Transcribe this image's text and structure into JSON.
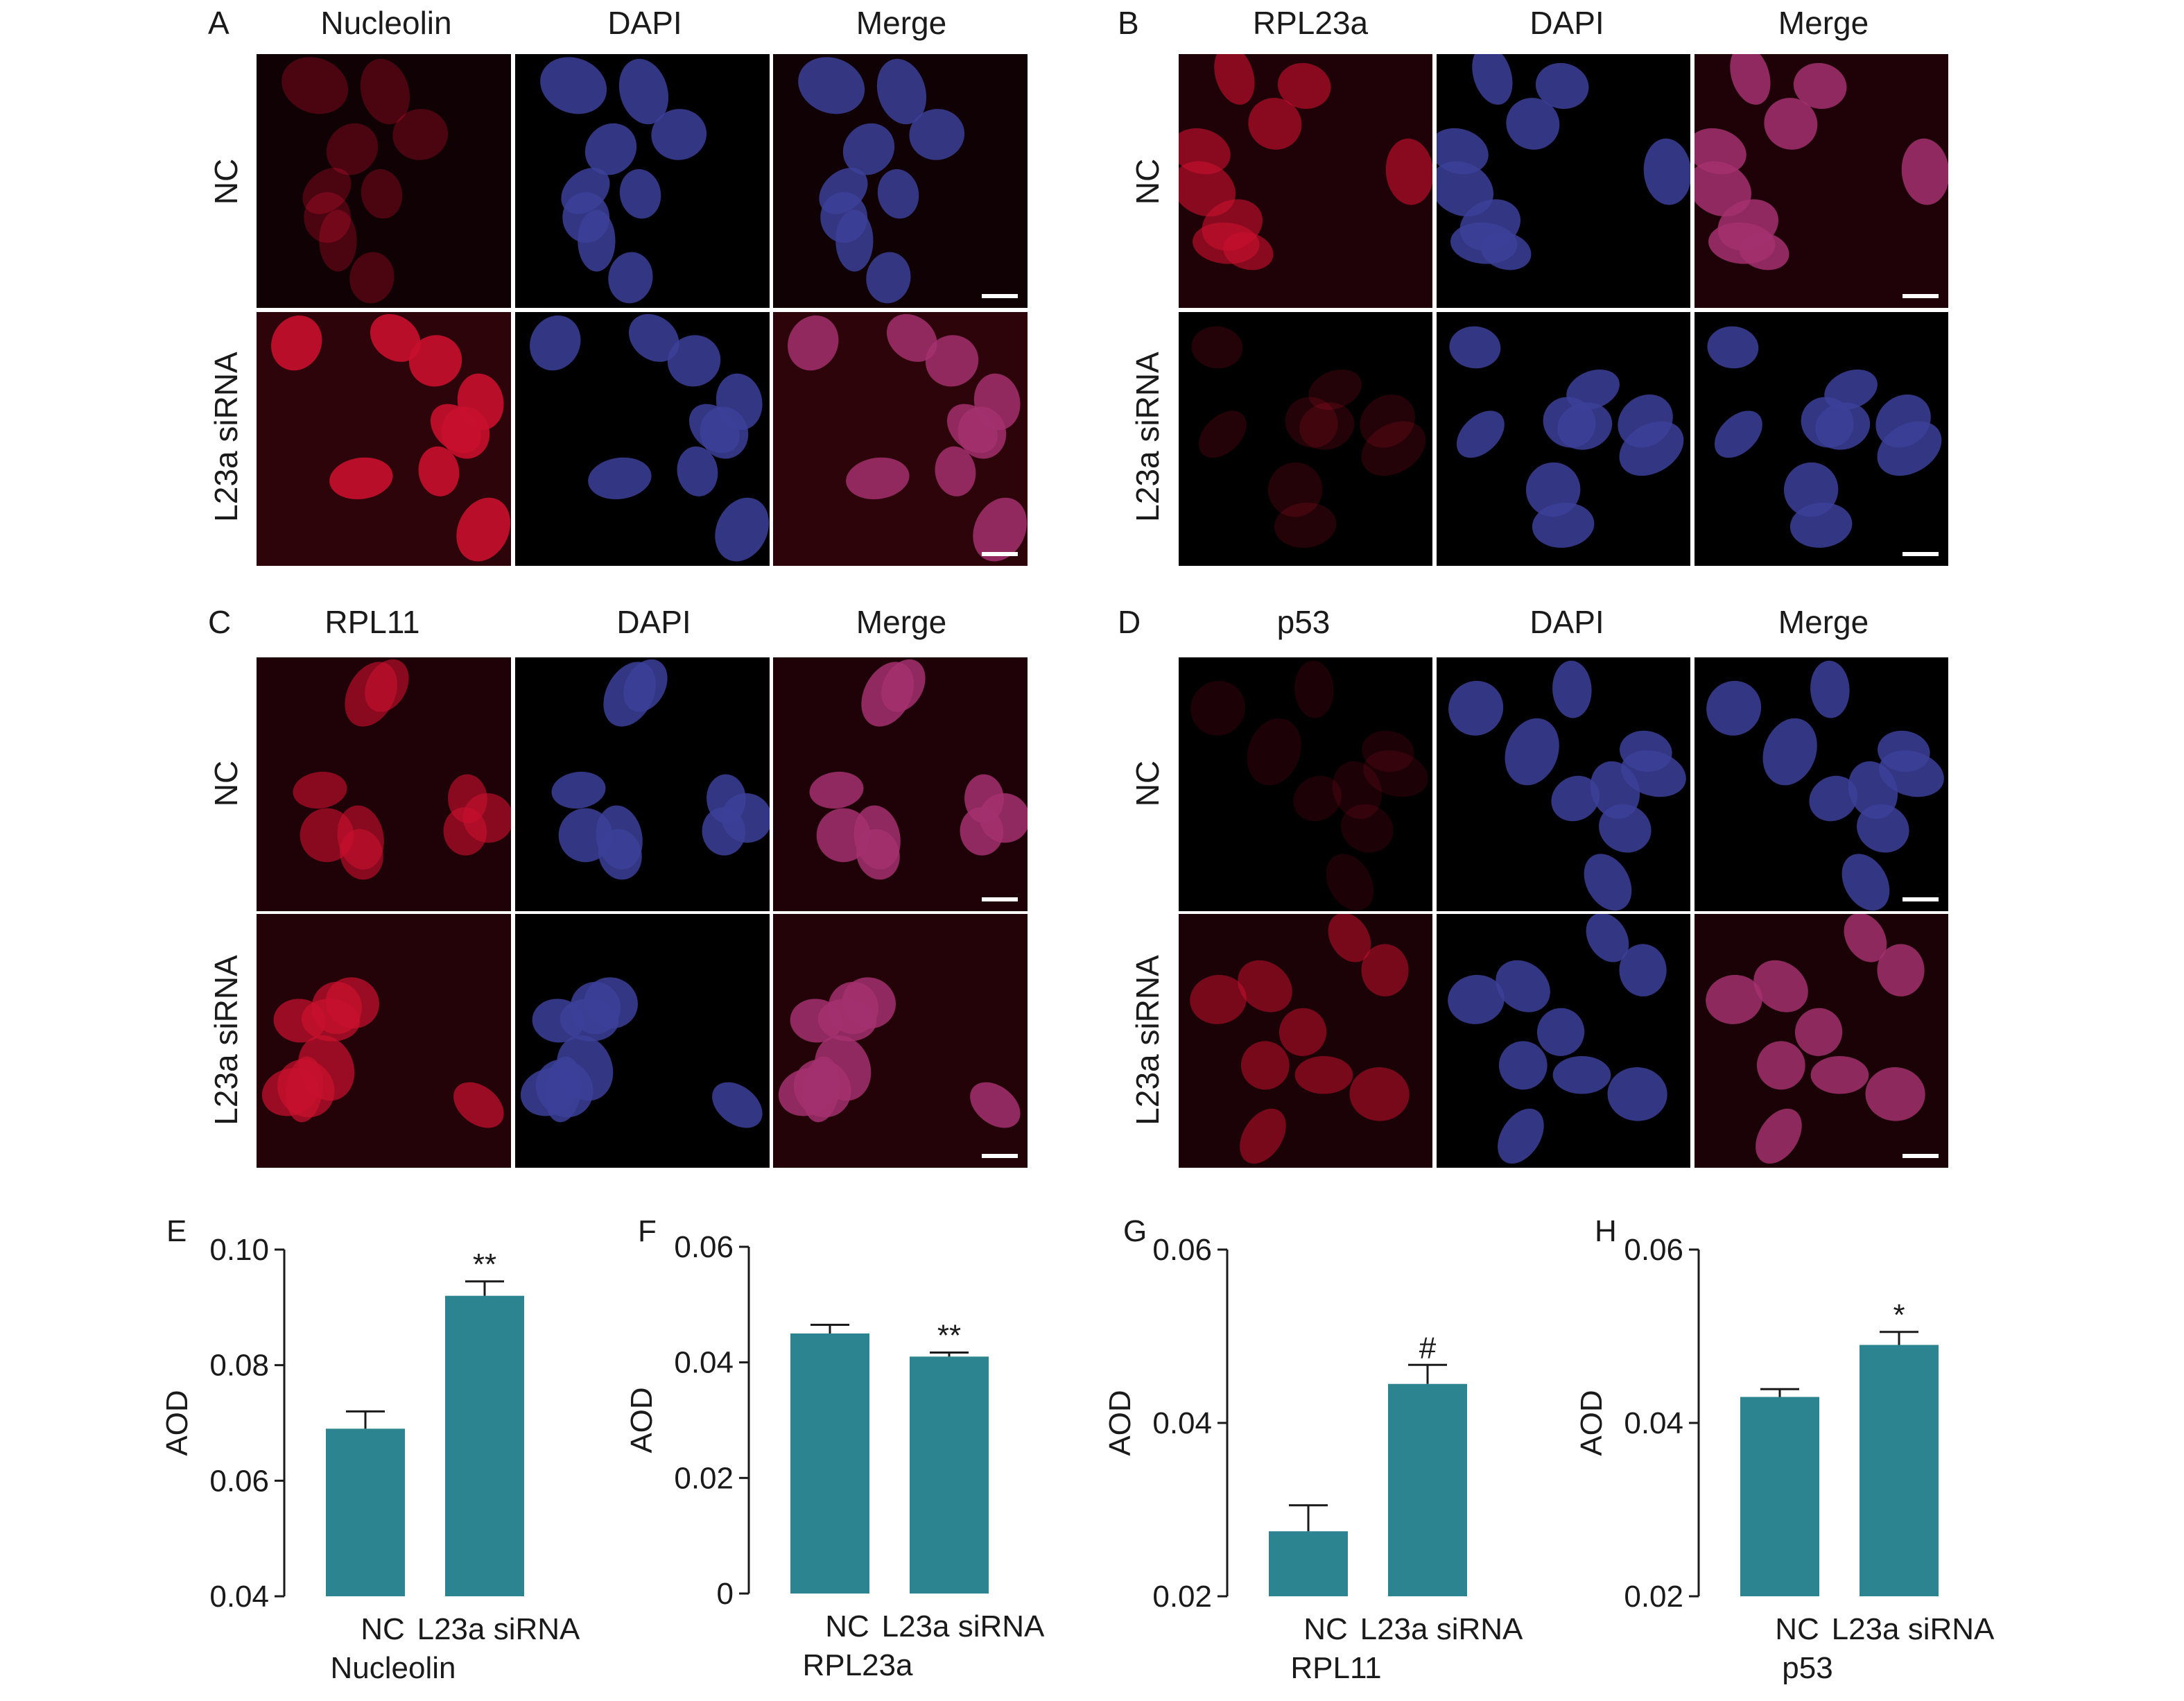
{
  "panels": {
    "A": {
      "letter": "A",
      "columns": [
        "Nucleolin",
        "DAPI",
        "Merge"
      ],
      "rows": [
        "NC",
        "L23a siRNA"
      ]
    },
    "B": {
      "letter": "B",
      "columns": [
        "RPL23a",
        "DAPI",
        "Merge"
      ],
      "rows": [
        "NC",
        "L23a siRNA"
      ]
    },
    "C": {
      "letter": "C",
      "columns": [
        "RPL11",
        "DAPI",
        "Merge"
      ],
      "rows": [
        "NC",
        "L23a siRNA"
      ]
    },
    "D": {
      "letter": "D",
      "columns": [
        "p53",
        "DAPI",
        "Merge"
      ],
      "rows": [
        "NC",
        "L23a siRNA"
      ]
    }
  },
  "colors": {
    "bar": "#2b8490",
    "dapi": "#3c3f99",
    "stain": "#c8102e",
    "background": "#000000"
  },
  "chart_data": [
    {
      "panel": "E",
      "type": "bar",
      "xlabel": "Nucleolin",
      "ylabel": "AOD",
      "categories": [
        "NC",
        "L23a siRNA"
      ],
      "values": [
        0.069,
        0.092
      ],
      "errors": [
        0.003,
        0.0025
      ],
      "annotations": [
        "",
        "**"
      ],
      "ylim": [
        0.04,
        0.1
      ],
      "ticks": [
        0.04,
        0.06,
        0.08,
        0.1
      ],
      "tick_labels": [
        "0.04",
        "0.06",
        "0.08",
        "0.10"
      ]
    },
    {
      "panel": "F",
      "type": "bar",
      "xlabel": "RPL23a",
      "ylabel": "AOD",
      "categories": [
        "NC",
        "L23a siRNA"
      ],
      "values": [
        0.045,
        0.041
      ],
      "errors": [
        0.0015,
        0.0007
      ],
      "annotations": [
        "",
        "**"
      ],
      "ylim": [
        0,
        0.06
      ],
      "ticks": [
        0,
        0.02,
        0.04,
        0.06
      ],
      "tick_labels": [
        "0",
        "0.02",
        "0.04",
        "0.06"
      ]
    },
    {
      "panel": "G",
      "type": "bar",
      "xlabel": "RPL11",
      "ylabel": "AOD",
      "categories": [
        "NC",
        "L23a siRNA"
      ],
      "values": [
        0.0275,
        0.0445
      ],
      "errors": [
        0.003,
        0.0022
      ],
      "annotations": [
        "",
        "#"
      ],
      "ylim": [
        0.02,
        0.06
      ],
      "ticks": [
        0.02,
        0.04,
        0.06
      ],
      "tick_labels": [
        "0.02",
        "0.04",
        "0.06"
      ]
    },
    {
      "panel": "H",
      "type": "bar",
      "xlabel": "p53",
      "ylabel": "AOD",
      "categories": [
        "NC",
        "L23a siRNA"
      ],
      "values": [
        0.043,
        0.049
      ],
      "errors": [
        0.0009,
        0.0015
      ],
      "annotations": [
        "",
        "*"
      ],
      "ylim": [
        0.02,
        0.06
      ],
      "ticks": [
        0.02,
        0.04,
        0.06
      ],
      "tick_labels": [
        "0.02",
        "0.04",
        "0.06"
      ]
    }
  ]
}
